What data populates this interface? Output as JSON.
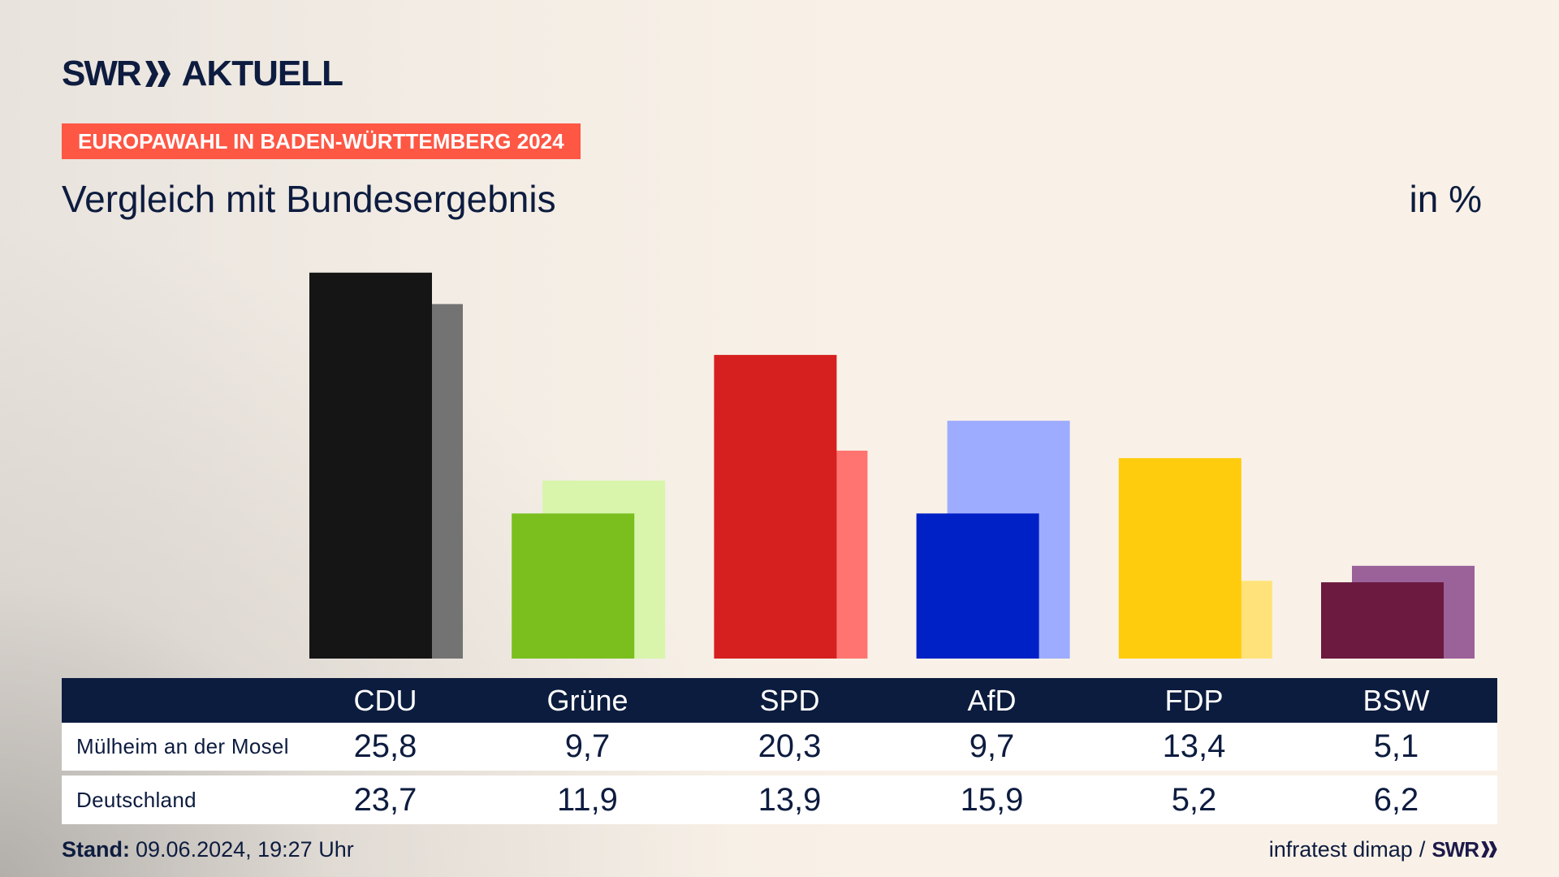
{
  "logo": {
    "brand": "SWR",
    "brand_icon": "double-chevron-icon",
    "title": "AKTUELL"
  },
  "tag": {
    "text": "EUROPAWAHL IN BADEN-WÜRTTEMBERG 2024"
  },
  "header": {
    "subtitle": "Vergleich mit Bundesergebnis",
    "unit": "in %"
  },
  "colors": {
    "background": "#f9f1e7",
    "navy": "#0d1c3f",
    "tag": "#fe5744",
    "table_header": "#0c1c3e",
    "row": "#ffffff"
  },
  "chart_data": {
    "type": "bar",
    "categories": [
      "CDU",
      "Grüne",
      "SPD",
      "AfD",
      "FDP",
      "BSW"
    ],
    "series": [
      {
        "name": "Mülheim an der Mosel",
        "values": [
          25.8,
          9.7,
          20.3,
          9.7,
          13.4,
          5.1
        ],
        "labels": [
          "25,8",
          "9,7",
          "20,3",
          "9,7",
          "13,4",
          "5,1"
        ],
        "colors": [
          "#151515",
          "#7abf1e",
          "#d62020",
          "#0021c6",
          "#ffcc0d",
          "#6c1a40"
        ]
      },
      {
        "name": "Deutschland",
        "values": [
          23.7,
          11.9,
          13.9,
          15.9,
          5.2,
          6.2
        ],
        "labels": [
          "23,7",
          "11,9",
          "13,9",
          "15,9",
          "5,2",
          "6,2"
        ],
        "colors": [
          "#737373",
          "#d8f5ab",
          "#ff7471",
          "#9eacff",
          "#ffe37a",
          "#9b6199"
        ]
      }
    ]
  },
  "footer": {
    "stand_label": "Stand:",
    "stand_value": "09.06.2024, 19:27 Uhr",
    "source": "infratest dimap",
    "separator": "/",
    "source_logo": "SWR",
    "source_logo_icon": "double-chevron-icon"
  }
}
